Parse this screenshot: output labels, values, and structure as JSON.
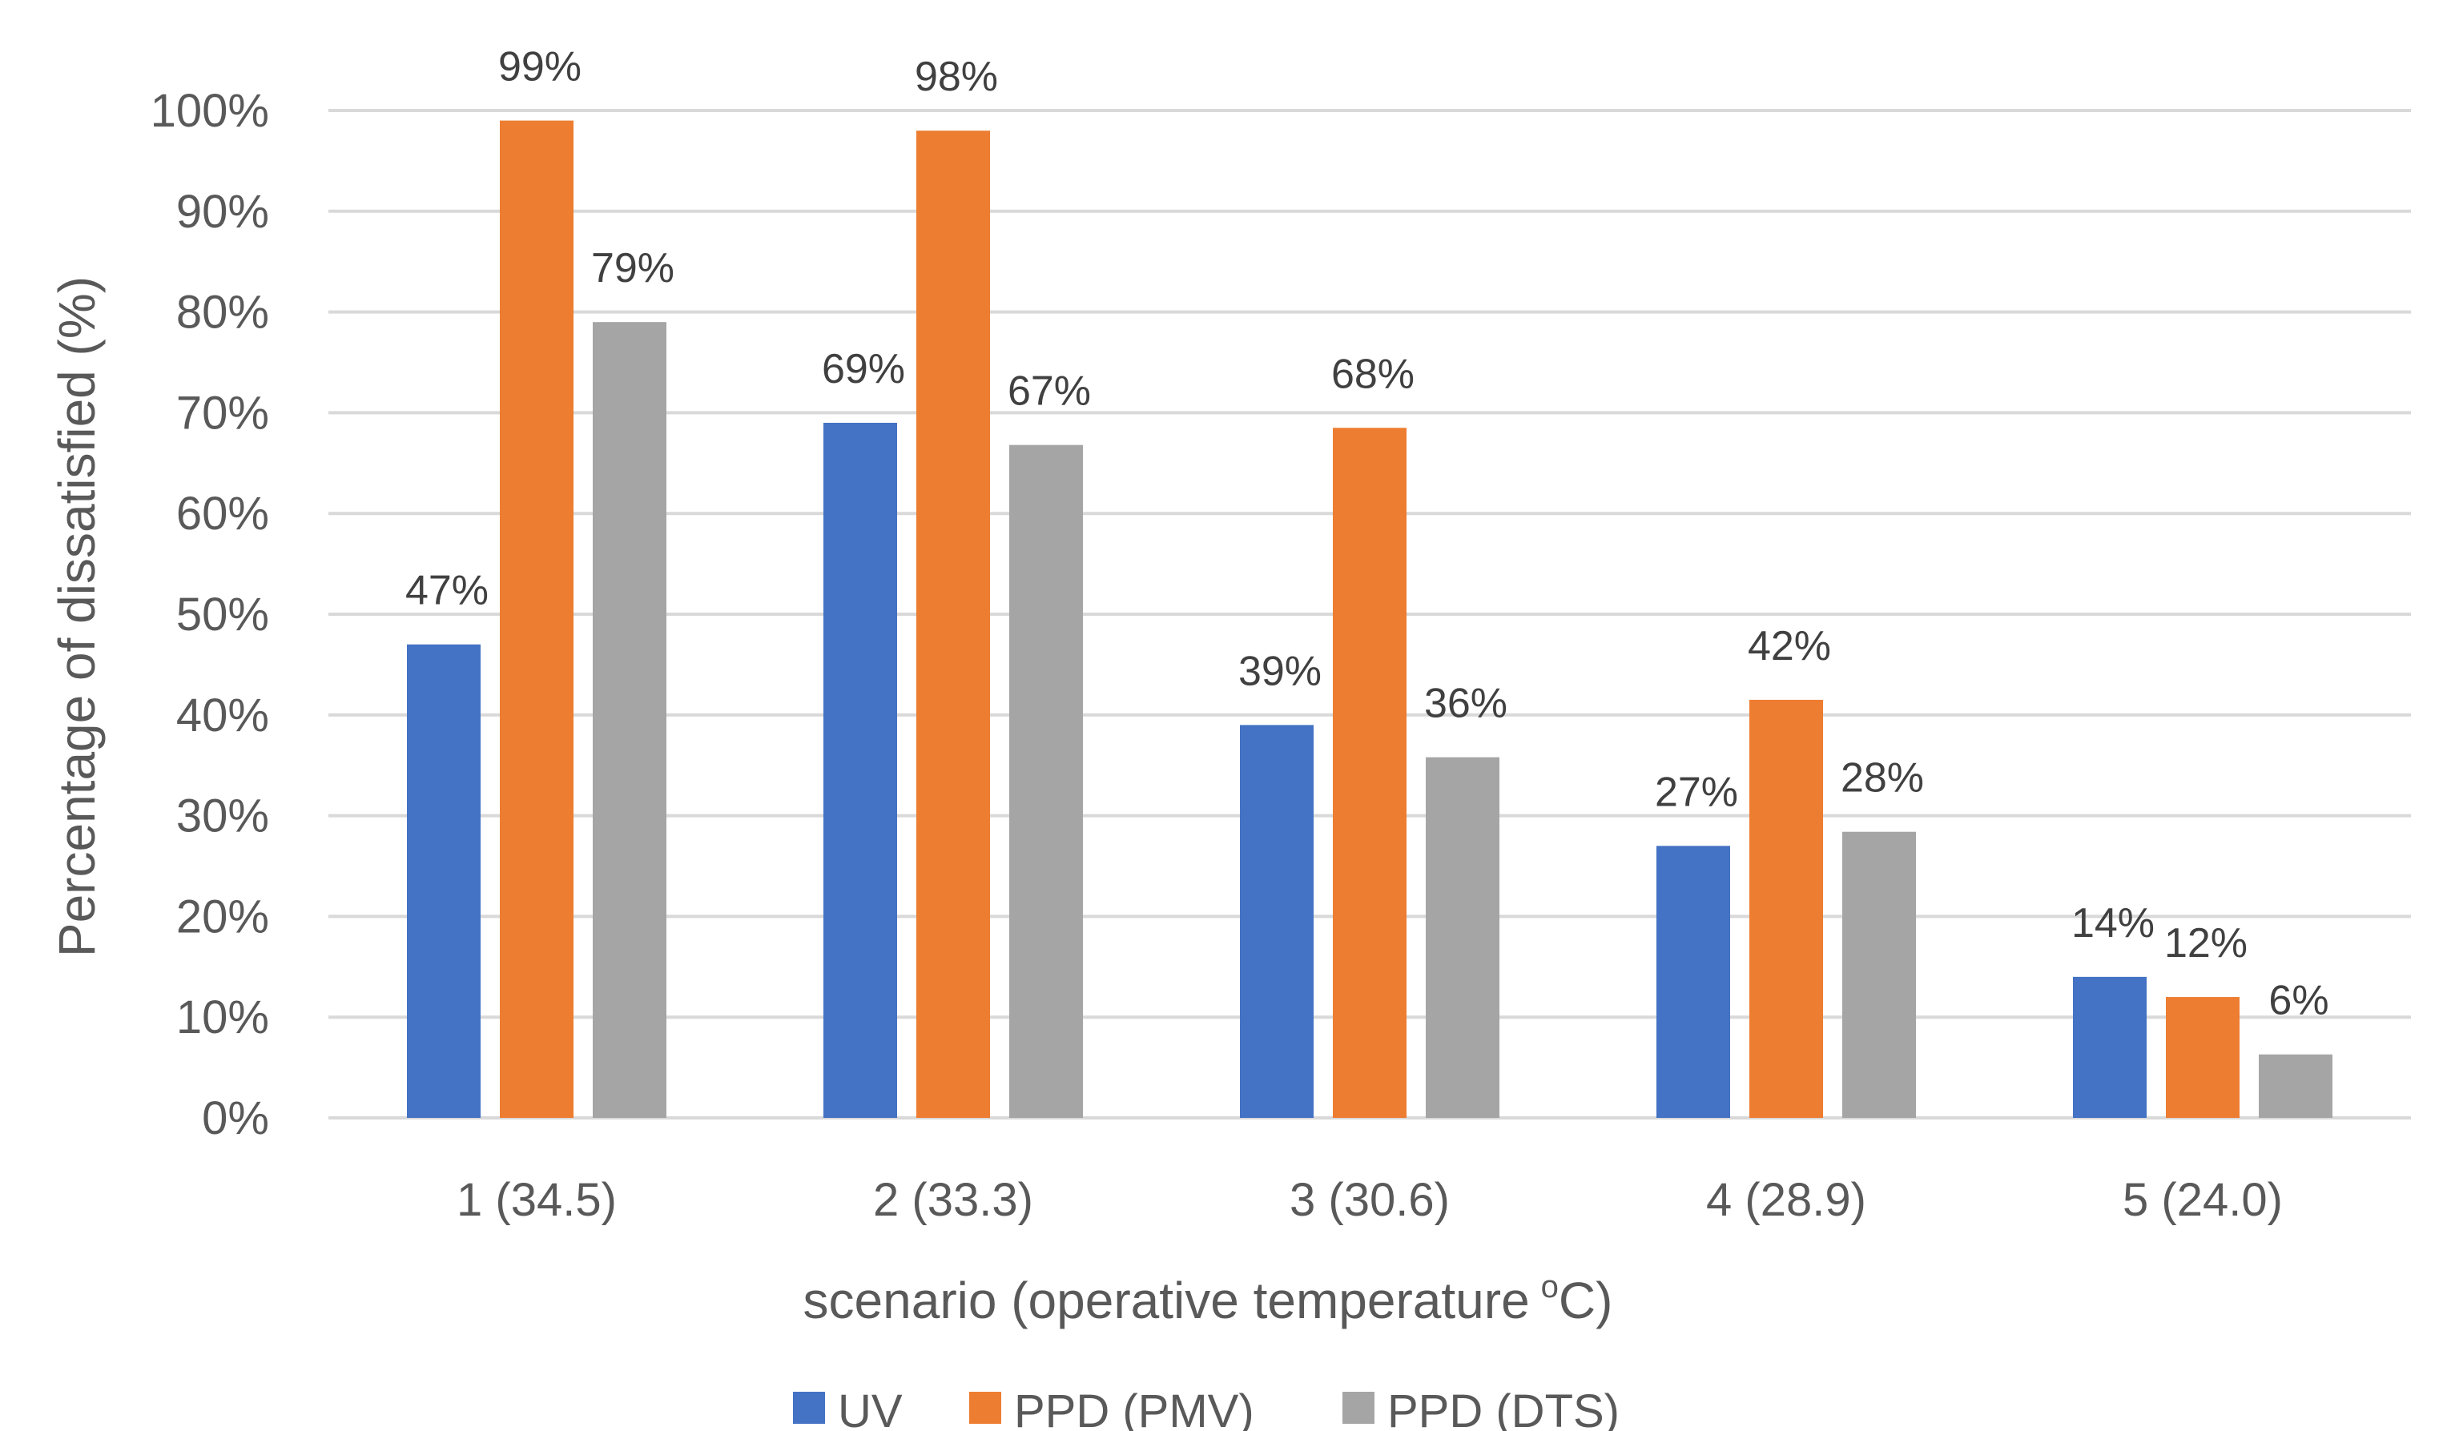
{
  "chart_data": {
    "type": "bar",
    "categories": [
      "1 (34.5)",
      "2 (33.3)",
      "3 (30.6)",
      "4 (28.9)",
      "5 (24.0)"
    ],
    "series": [
      {
        "name": "UV",
        "color": "#4472c4",
        "values": [
          47,
          69,
          39,
          27,
          14
        ],
        "labels": [
          "47%",
          "69%",
          "39%",
          "27%",
          "14%"
        ]
      },
      {
        "name": "PPD (PMV)",
        "color": "#ed7d31",
        "values": [
          99,
          98,
          68.5,
          41.5,
          12
        ],
        "labels": [
          "99%",
          "98%",
          "68%",
          "42%",
          "12%"
        ]
      },
      {
        "name": "PPD (DTS)",
        "color": "#a5a5a5",
        "values": [
          79,
          66.8,
          35.8,
          28.4,
          6.3
        ],
        "labels": [
          "79%",
          "67%",
          "36%",
          "28%",
          "6%"
        ]
      }
    ],
    "xlabel": "scenario (operative temperature",
    "xlabel_unit_sup": "o",
    "xlabel_unit": "C)",
    "ylabel": "Percentage of dissatisfied (%)",
    "ylim": [
      0,
      100
    ],
    "yticks": [
      "0%",
      "10%",
      "20%",
      "30%",
      "40%",
      "50%",
      "60%",
      "70%",
      "80%",
      "90%",
      "100%"
    ],
    "grid": true,
    "legend_position": "bottom"
  }
}
